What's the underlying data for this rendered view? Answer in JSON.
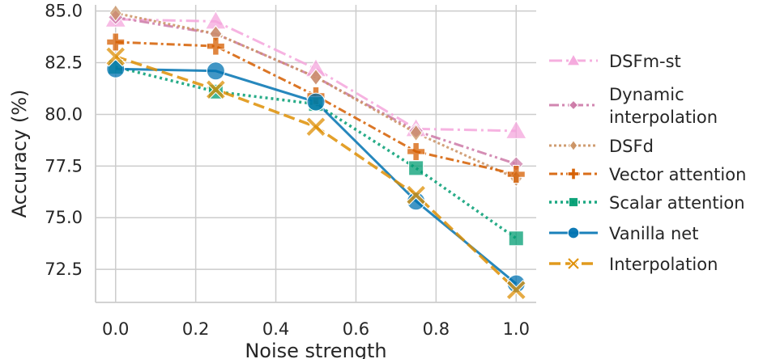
{
  "chart_data": {
    "type": "line",
    "xlabel": "Noise strength",
    "ylabel": "Accuracy (%)",
    "xlim": [
      -0.05,
      1.05
    ],
    "ylim": [
      70.9,
      85.3
    ],
    "xticks": [
      0.0,
      0.2,
      0.4,
      0.6,
      0.8,
      1.0
    ],
    "xtick_labels": [
      "0.0",
      "0.2",
      "0.4",
      "0.6",
      "0.8",
      "1.0"
    ],
    "yticks": [
      72.5,
      75.0,
      77.5,
      80.0,
      82.5,
      85.0
    ],
    "ytick_labels": [
      "72.5",
      "75.0",
      "77.5",
      "80.0",
      "82.5",
      "85.0"
    ],
    "grid": true,
    "legend_position": "right",
    "x": [
      0.0,
      0.25,
      0.5,
      0.75,
      1.0
    ],
    "series": [
      {
        "name": "DSFm-st",
        "values": [
          84.6,
          84.5,
          82.2,
          79.3,
          79.2
        ],
        "color": "#f4a6dc",
        "dash": "16 5 3 5",
        "marker": "triangle",
        "width": 3
      },
      {
        "name": "Dynamic\ninterpolation",
        "values": [
          84.7,
          83.9,
          81.8,
          79.2,
          77.6
        ],
        "color": "#cc79a7",
        "dash": "12 4 3 4 3 4",
        "marker": "diamond",
        "width": 3
      },
      {
        "name": "DSFd",
        "values": [
          84.9,
          83.9,
          81.8,
          79.1,
          76.9
        ],
        "color": "#ca9161",
        "dash": "3 3",
        "marker": "thin-diamond",
        "width": 3
      },
      {
        "name": "Vector attention",
        "values": [
          83.5,
          83.3,
          80.9,
          78.2,
          77.1
        ],
        "color": "#d55e00",
        "dash": "10 4 3 4",
        "marker": "plus",
        "width": 3
      },
      {
        "name": "Scalar attention",
        "values": [
          82.3,
          81.1,
          80.5,
          77.4,
          74.0
        ],
        "color": "#029e73",
        "dash": "3 4",
        "marker": "square",
        "width": 3.5
      },
      {
        "name": "Vanilla net",
        "values": [
          82.2,
          82.1,
          80.6,
          75.8,
          71.8
        ],
        "color": "#0173b2",
        "dash": "",
        "marker": "circle",
        "width": 3
      },
      {
        "name": "Interpolation",
        "values": [
          82.8,
          81.2,
          79.4,
          76.1,
          71.5
        ],
        "color": "#de8f05",
        "dash": "14 6",
        "marker": "x",
        "width": 3.5
      }
    ]
  }
}
